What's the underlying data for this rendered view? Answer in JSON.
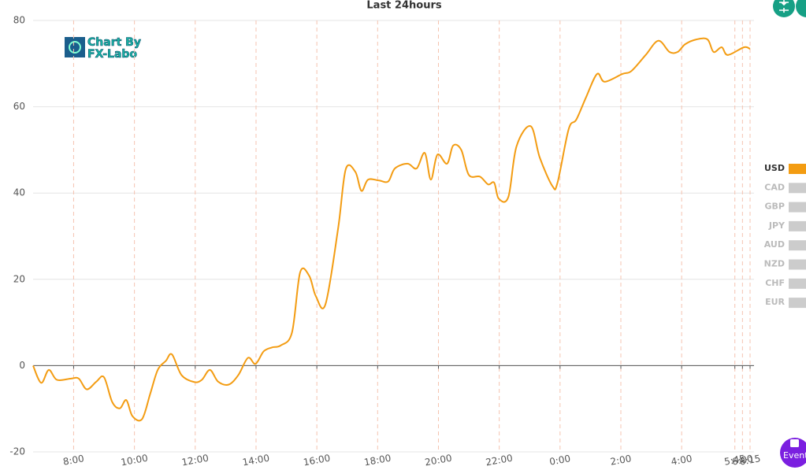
{
  "chart_data": {
    "type": "line",
    "title": "Last 24hours",
    "x": [
      "6:40",
      "6:56",
      "7:11",
      "7:27",
      "7:55",
      "8:10",
      "8:26",
      "8:45",
      "9:00",
      "9:16",
      "9:31",
      "9:44",
      "9:56",
      "10:15",
      "10:31",
      "10:46",
      "11:02",
      "11:14",
      "11:33",
      "11:58",
      "12:13",
      "12:29",
      "12:45",
      "13:06",
      "13:25",
      "13:44",
      "13:59",
      "14:15",
      "14:31",
      "14:49",
      "15:11",
      "15:27",
      "15:45",
      "15:58",
      "16:17",
      "16:42",
      "16:57",
      "17:16",
      "17:28",
      "17:41",
      "18:03",
      "18:21",
      "18:34",
      "18:59",
      "19:17",
      "19:33",
      "19:45",
      "19:58",
      "20:17",
      "20:29",
      "20:45",
      "21:00",
      "21:22",
      "21:38",
      "21:50",
      "21:59",
      "22:18",
      "22:34",
      "23:02",
      "23:20",
      "23:45",
      "23:55",
      "0:17",
      "0:32",
      "0:51",
      "1:13",
      "1:28",
      "2:03",
      "2:21",
      "2:49",
      "3:14",
      "3:36",
      "3:52",
      "4:07",
      "4:29",
      "4:51",
      "5:03",
      "5:19",
      "5:31",
      "6:03",
      "6:15"
    ],
    "series": [
      {
        "name": "USD",
        "color": "#f39c12",
        "values": [
          0,
          -4,
          -1,
          -3.3,
          -3,
          -3,
          -5.5,
          -3.7,
          -2.7,
          -8.4,
          -9.9,
          -8,
          -11.7,
          -12.4,
          -6.6,
          -1,
          1.1,
          2.6,
          -2.2,
          -3.8,
          -3.3,
          -1,
          -3.7,
          -4.4,
          -2.2,
          1.8,
          0.4,
          3.3,
          4.2,
          4.7,
          7.7,
          21.6,
          20.8,
          16.1,
          14.2,
          31.8,
          45.5,
          44.9,
          40.5,
          43.1,
          42.9,
          42.7,
          45.7,
          46.8,
          45.7,
          49.3,
          43.1,
          48.9,
          46.8,
          51,
          50,
          44.2,
          43.8,
          42,
          42.4,
          38.7,
          39.1,
          50.8,
          55.5,
          48.2,
          41.6,
          42.4,
          54.8,
          57,
          62.1,
          67.6,
          65.8,
          67.6,
          68.3,
          72,
          75.3,
          72.7,
          72.7,
          74.5,
          75.6,
          75.6,
          72.7,
          73.8,
          72,
          73.8,
          73.4
        ]
      }
    ],
    "inactive_series": [
      "CAD",
      "GBP",
      "JPY",
      "AUD",
      "NZD",
      "CHF",
      "EUR"
    ],
    "xlim": [
      "6:40",
      "6:15"
    ],
    "xticks": [
      "8:00",
      "10:00",
      "12:00",
      "14:00",
      "16:00",
      "18:00",
      "20:00",
      "22:00",
      "0:00",
      "2:00",
      "4:00",
      "5:45",
      "6:00",
      "6:15"
    ],
    "ylim": [
      -20,
      80
    ],
    "yticks": [
      -20,
      0,
      20,
      40,
      60,
      80
    ],
    "grid": true,
    "legend": "right"
  },
  "logo": [
    "Chart By",
    "FX-Labo"
  ],
  "event_button": "Event"
}
